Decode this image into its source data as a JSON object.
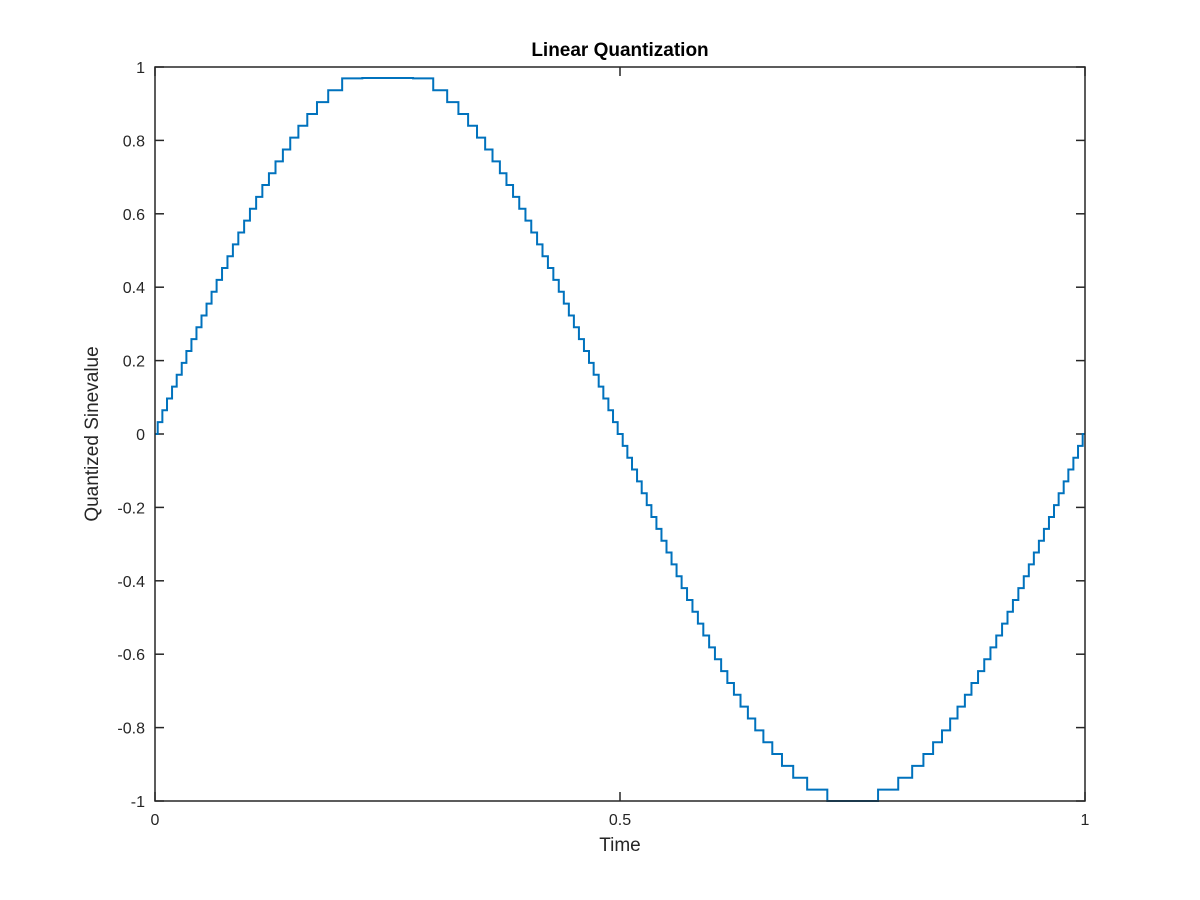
{
  "chart_data": {
    "type": "line",
    "title": "Linear Quantization",
    "xlabel": "Time",
    "ylabel": "Quantized Sinevalue",
    "xlim": [
      0,
      1
    ],
    "ylim": [
      -1,
      1
    ],
    "xticks": [
      0,
      0.5,
      1
    ],
    "xtick_labels": [
      "0",
      "0.5",
      "1"
    ],
    "yticks": [
      -1,
      -0.8,
      -0.6,
      -0.4,
      -0.2,
      0,
      0.2,
      0.4,
      0.6,
      0.8,
      1
    ],
    "ytick_labels": [
      "-1",
      "-0.8",
      "-0.6",
      "-0.4",
      "-0.2",
      "0",
      "0.2",
      "0.4",
      "0.6",
      "0.8",
      "1"
    ],
    "grid": false,
    "series": [
      {
        "signal": "sine",
        "cycles": 1,
        "quantization_step": 0.0323,
        "quantization_min": -1.0,
        "quantization_max": 0.97,
        "render": "step",
        "color": "#0072bd"
      }
    ]
  }
}
